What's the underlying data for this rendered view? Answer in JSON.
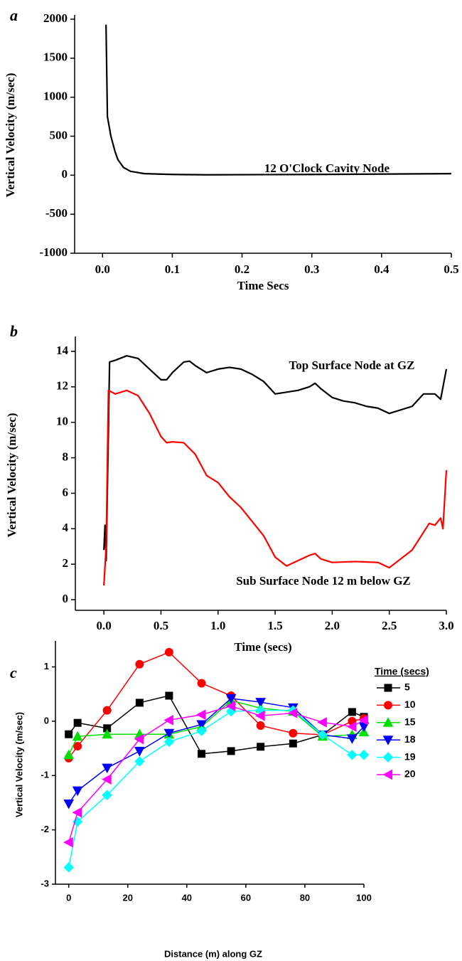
{
  "chart_data": [
    {
      "type": "line",
      "panel_label": "a",
      "xlabel": "Time Secs",
      "ylabel": "Vertical Velocity (m/sec)",
      "annotations": [
        "12 O'Clock Cavity Node"
      ],
      "xlim": [
        -0.04,
        0.5
      ],
      "ylim": [
        -1000,
        2000
      ],
      "xticks": [
        {
          "value": 0,
          "label": "0.0"
        },
        0.1,
        0.2,
        0.3,
        0.4,
        0.5
      ],
      "yticks": [
        -1000,
        -500,
        0,
        500,
        1000,
        1500,
        2000
      ],
      "series": [
        {
          "color": "#000000",
          "x": [
            0.005,
            0.007,
            0.012,
            0.018,
            0.022,
            0.03,
            0.04,
            0.06,
            0.1,
            0.15,
            0.3,
            0.5
          ],
          "values": [
            1930,
            750,
            500,
            300,
            200,
            100,
            50,
            20,
            10,
            5,
            10,
            20
          ]
        }
      ]
    },
    {
      "type": "line",
      "panel_label": "b",
      "xlabel": "Time (secs)",
      "ylabel": "Vertical Velocity (m/sec)",
      "annotations": [
        "Top Surface Node at GZ",
        "Sub Surface Node 12 m below GZ"
      ],
      "xlim": [
        -0.25,
        3.0
      ],
      "ylim": [
        -0.6,
        14.6
      ],
      "xticks": [
        {
          "value": 0,
          "label": "0.0"
        },
        0.5,
        {
          "value": 1,
          "label": "1.0"
        },
        1.5,
        {
          "value": 2,
          "label": "2.0"
        },
        2.5,
        {
          "value": 3,
          "label": "3.0"
        }
      ],
      "yticks": [
        0,
        2,
        4,
        6,
        8,
        10,
        12,
        14
      ],
      "series": [
        {
          "color": "#000000",
          "x": [
            0,
            0.01,
            0.02,
            0.05,
            0.1,
            0.2,
            0.3,
            0.4,
            0.5,
            0.55,
            0.6,
            0.7,
            0.75,
            0.8,
            0.9,
            1.0,
            1.1,
            1.2,
            1.3,
            1.4,
            1.5,
            1.6,
            1.7,
            1.8,
            1.85,
            1.9,
            2.0,
            2.1,
            2.2,
            2.3,
            2.4,
            2.5,
            2.6,
            2.7,
            2.8,
            2.9,
            2.95,
            3.0
          ],
          "values": [
            2.8,
            4.2,
            2.2,
            13.4,
            13.5,
            13.75,
            13.6,
            13.0,
            12.4,
            12.4,
            12.8,
            13.4,
            13.45,
            13.2,
            12.8,
            13.0,
            13.1,
            13.0,
            12.7,
            12.3,
            11.6,
            11.7,
            11.8,
            12.0,
            12.2,
            11.9,
            11.4,
            11.2,
            11.1,
            10.9,
            10.8,
            10.5,
            10.7,
            10.9,
            11.6,
            11.6,
            11.3,
            13.0
          ]
        },
        {
          "color": "#ff0000",
          "x": [
            0,
            0.02,
            0.04,
            0.1,
            0.2,
            0.3,
            0.4,
            0.5,
            0.55,
            0.6,
            0.7,
            0.8,
            0.9,
            1.0,
            1.1,
            1.2,
            1.3,
            1.4,
            1.5,
            1.6,
            1.7,
            1.8,
            1.85,
            1.9,
            2.0,
            2.2,
            2.4,
            2.5,
            2.6,
            2.7,
            2.8,
            2.85,
            2.9,
            2.95,
            2.97,
            3.0
          ],
          "values": [
            0.8,
            3,
            11.8,
            11.6,
            11.8,
            11.5,
            10.5,
            9.2,
            8.85,
            8.9,
            8.85,
            8.2,
            7.0,
            6.6,
            5.8,
            5.2,
            4.4,
            3.6,
            2.4,
            1.9,
            2.2,
            2.5,
            2.6,
            2.3,
            2.1,
            2.15,
            2.1,
            1.8,
            2.3,
            2.8,
            3.8,
            4.3,
            4.2,
            4.6,
            4.0,
            7.3
          ]
        }
      ]
    },
    {
      "type": "line",
      "panel_label": "c",
      "xlabel": "Distance (m) along GZ",
      "ylabel": "Vertical Velocity (m/sec)",
      "legend_title": "Time (secs)",
      "xlim": [
        -4.5,
        100
      ],
      "ylim": [
        -3,
        1.4
      ],
      "xticks": [
        0,
        20,
        40,
        60,
        80,
        100
      ],
      "yticks": [
        -3,
        -2,
        -1,
        0,
        1
      ],
      "x": [
        0,
        3,
        13,
        24,
        34,
        45,
        55,
        65,
        76,
        86,
        96,
        100
      ],
      "series": [
        {
          "name": "5",
          "color": "#000000",
          "marker": "square",
          "values": [
            -0.24,
            -0.03,
            -0.13,
            0.34,
            0.47,
            -0.6,
            -0.55,
            -0.47,
            -0.41,
            -0.25,
            0.17,
            0.08
          ]
        },
        {
          "name": "10",
          "color": "#ff0000",
          "marker": "circle",
          "values": [
            -0.68,
            -0.46,
            0.2,
            1.05,
            1.27,
            0.7,
            0.47,
            -0.08,
            -0.22,
            -0.25,
            0.0,
            0.05
          ]
        },
        {
          "name": "15",
          "color": "#00e000",
          "marker": "triangle-up",
          "values": [
            -0.62,
            -0.28,
            -0.24,
            -0.24,
            -0.24,
            -0.1,
            0.38,
            0.24,
            0.18,
            -0.28,
            -0.25,
            -0.2
          ]
        },
        {
          "name": "18",
          "color": "#0000ff",
          "marker": "triangle-down",
          "values": [
            -1.52,
            -1.28,
            -0.86,
            -0.55,
            -0.22,
            -0.06,
            0.42,
            0.35,
            0.25,
            -0.25,
            -0.32,
            -0.1
          ]
        },
        {
          "name": "19",
          "color": "#00ffff",
          "marker": "diamond",
          "values": [
            -2.69,
            -1.85,
            -1.36,
            -0.74,
            -0.38,
            -0.18,
            0.18,
            0.2,
            0.2,
            -0.25,
            -0.62,
            -0.62
          ]
        },
        {
          "name": "20",
          "color": "#ff00ff",
          "marker": "triangle-left",
          "values": [
            -2.23,
            -1.68,
            -1.07,
            -0.33,
            0.02,
            0.12,
            0.28,
            0.1,
            0.15,
            -0.02,
            -0.1,
            0.02
          ]
        }
      ]
    }
  ]
}
